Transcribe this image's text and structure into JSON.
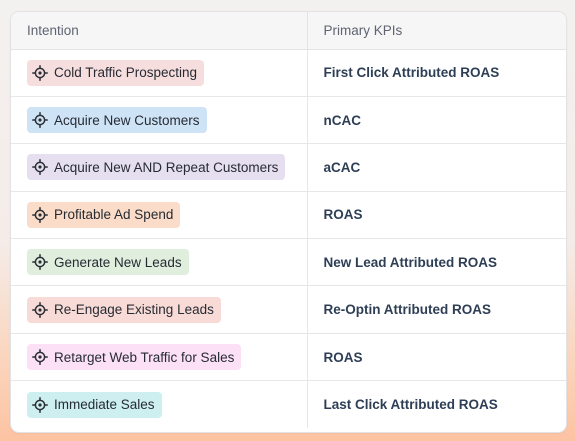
{
  "table": {
    "headers": {
      "intention": "Intention",
      "kpi": "Primary KPIs"
    },
    "rows": [
      {
        "intention": "Cold Traffic Prospecting",
        "kpi": "First Click Attributed ROAS",
        "color": "#f7dede"
      },
      {
        "intention": "Acquire New Customers",
        "kpi": "nCAC",
        "color": "#cfe3f7"
      },
      {
        "intention": "Acquire New AND Repeat Customers",
        "kpi": "aCAC",
        "color": "#e6dff0"
      },
      {
        "intention": "Profitable Ad Spend",
        "kpi": "ROAS",
        "color": "#fadcc8"
      },
      {
        "intention": "Generate New Leads",
        "kpi": "New Lead Attributed ROAS",
        "color": "#dfeedd"
      },
      {
        "intention": "Re-Engage Existing Leads",
        "kpi": "Re-Optin Attributed ROAS",
        "color": "#f8dbd6"
      },
      {
        "intention": "Retarget Web Traffic for Sales",
        "kpi": "ROAS",
        "color": "#fbe0f6"
      },
      {
        "intention": "Immediate Sales",
        "kpi": "Last Click Attributed ROAS",
        "color": "#cdeff0"
      }
    ],
    "icon": "target-icon"
  }
}
